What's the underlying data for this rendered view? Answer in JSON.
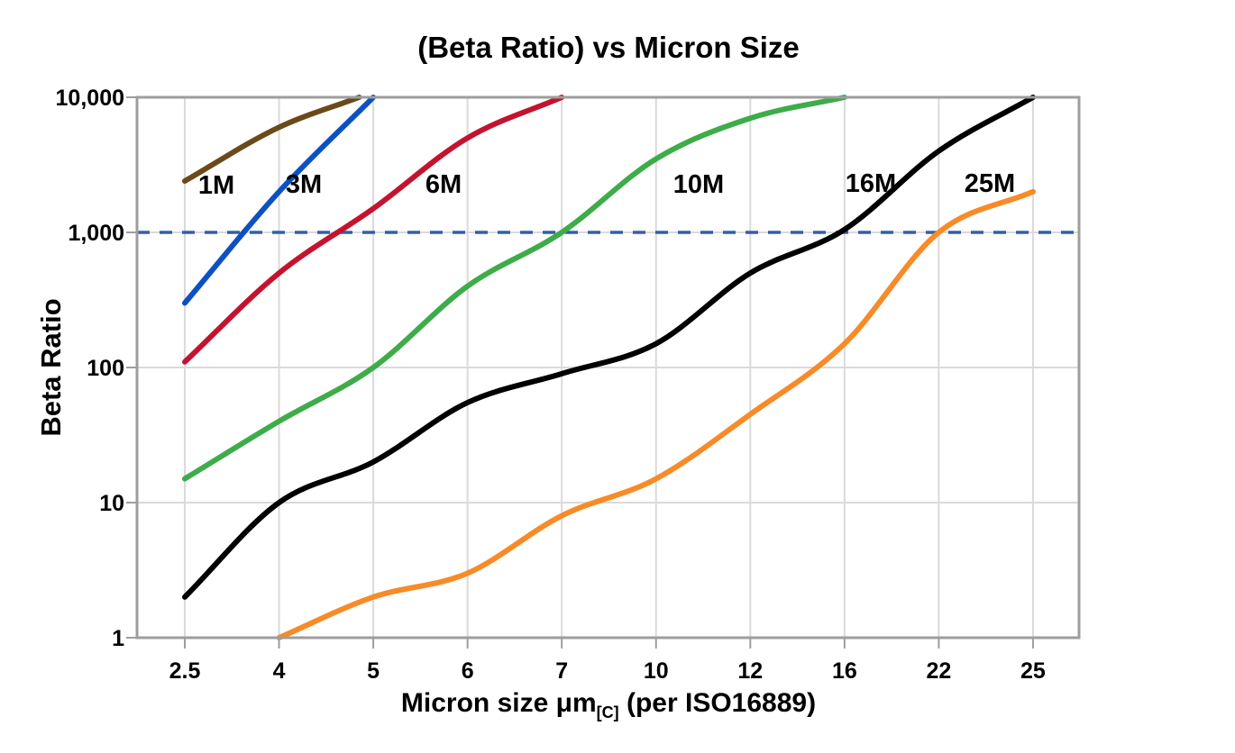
{
  "title": "(Beta Ratio) vs Micron Size",
  "chart_data": {
    "type": "line",
    "title": "(Beta Ratio) vs Micron Size",
    "ylabel": "Beta Ratio",
    "xlabel": {
      "prefix": "Micron size μm",
      "subscript": "[C]",
      "suffix": " (per ISO16889)"
    },
    "x_scale": "categorical",
    "y_scale": "log",
    "ylim": [
      1,
      10000
    ],
    "grid": true,
    "legend": "inline-labels",
    "x_ticks": [
      2.5,
      4,
      5,
      6,
      7,
      10,
      12,
      16,
      22,
      25
    ],
    "x_tick_labels": [
      "2.5",
      "4",
      "5",
      "6",
      "7",
      "10",
      "12",
      "16",
      "22",
      "25"
    ],
    "y_ticks": [
      1,
      10,
      100,
      1000,
      10000
    ],
    "y_tick_labels": [
      "1",
      "10",
      "100",
      "1,000",
      "10,000"
    ],
    "reference_line": {
      "beta": 1000,
      "style": "dashed",
      "color": "#3060AD"
    },
    "series": [
      {
        "name": "1M",
        "color": "#6B4A19",
        "points": [
          [
            2.5,
            2400
          ],
          [
            4,
            6000
          ],
          [
            4.85,
            10000
          ]
        ]
      },
      {
        "name": "3M",
        "color": "#0D50C4",
        "points": [
          [
            2.5,
            300
          ],
          [
            4,
            2000
          ],
          [
            5,
            10000
          ]
        ]
      },
      {
        "name": "6M",
        "color": "#C4132F",
        "points": [
          [
            2.5,
            110
          ],
          [
            4,
            500
          ],
          [
            5,
            1500
          ],
          [
            6,
            5000
          ],
          [
            7,
            10000
          ]
        ]
      },
      {
        "name": "10M",
        "color": "#3DAC49",
        "points": [
          [
            2.5,
            15
          ],
          [
            4,
            40
          ],
          [
            5,
            100
          ],
          [
            6,
            400
          ],
          [
            7,
            1000
          ],
          [
            10,
            3500
          ],
          [
            12,
            7000
          ],
          [
            16,
            10000
          ]
        ]
      },
      {
        "name": "16M",
        "color": "#000000",
        "points": [
          [
            2.5,
            2
          ],
          [
            4,
            10
          ],
          [
            5,
            20
          ],
          [
            6,
            55
          ],
          [
            7,
            90
          ],
          [
            10,
            150
          ],
          [
            12,
            500
          ],
          [
            16,
            1050
          ],
          [
            22,
            4000
          ],
          [
            25,
            10000
          ]
        ]
      },
      {
        "name": "25M",
        "color": "#F68B28",
        "points": [
          [
            4,
            1
          ],
          [
            5,
            2
          ],
          [
            6,
            3
          ],
          [
            7,
            8
          ],
          [
            10,
            15
          ],
          [
            12,
            45
          ],
          [
            16,
            150
          ],
          [
            22,
            1000
          ],
          [
            25,
            2000
          ]
        ]
      }
    ],
    "colors": {
      "background": "#FFFFFF",
      "grid": "#DADADA",
      "axis_border": "#9E9E9E",
      "tick_text": "#000000",
      "reference_dashed": "#3060AD"
    }
  }
}
